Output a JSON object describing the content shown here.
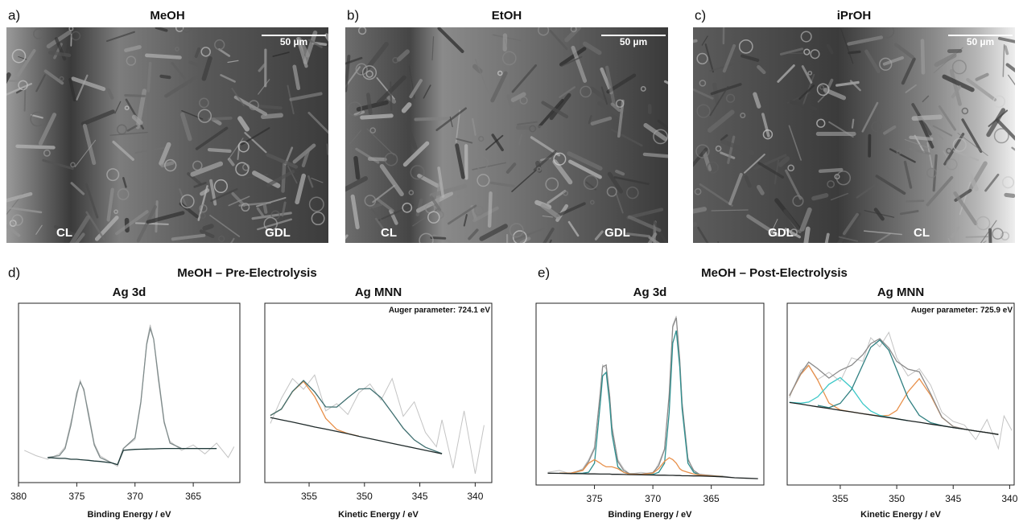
{
  "figure": {
    "panels": [
      {
        "label": "a)",
        "title": "MeOH",
        "scale_bar": "50 µm",
        "regions": [
          "CL",
          "GDL"
        ]
      },
      {
        "label": "b)",
        "title": "EtOH",
        "scale_bar": "50 µm",
        "regions": [
          "CL",
          "GDL"
        ]
      },
      {
        "label": "c)",
        "title": "iPrOH",
        "scale_bar": "50 µm",
        "regions": [
          "GDL",
          "CL"
        ]
      }
    ],
    "groups": [
      {
        "label": "d)",
        "title": "MeOH – Pre-Electrolysis"
      },
      {
        "label": "e)",
        "title": "MeOH – Post-Electrolysis"
      }
    ]
  },
  "chart_data": [
    {
      "type": "line",
      "title": "Ag 3d",
      "xlabel": "Binding Energy / eV",
      "xlim": [
        380,
        361
      ],
      "xticks": [
        380,
        375,
        370,
        365
      ],
      "ylim": [
        0,
        100
      ],
      "x": [
        379.5,
        378.5,
        377.5,
        376.5,
        376,
        375.5,
        375,
        374.7,
        374.4,
        374,
        373.5,
        373,
        372,
        371.5,
        371,
        370,
        369.5,
        369,
        368.7,
        368.4,
        368,
        367.5,
        367,
        366,
        365,
        364,
        363,
        362,
        361.5
      ],
      "series": [
        {
          "color": "#c4c4c4",
          "values": [
            18,
            15,
            13,
            16,
            20,
            34,
            48,
            57,
            51,
            40,
            22,
            15,
            11,
            9,
            19,
            24,
            44,
            78,
            88,
            80,
            57,
            33,
            23,
            18,
            21,
            16,
            22,
            14,
            20
          ]
        },
        {
          "color": "#7e8a8a",
          "values": [
            null,
            null,
            14,
            15,
            19,
            32,
            50,
            56,
            52,
            38,
            21,
            14,
            11,
            10,
            19,
            25,
            45,
            77,
            86,
            80,
            59,
            34,
            22,
            19,
            19,
            19,
            19,
            null,
            null
          ]
        },
        {
          "color": "#1f3a3a",
          "values": [
            null,
            null,
            14,
            13.5,
            13.5,
            13,
            13,
            12.8,
            12.6,
            12.4,
            12,
            11.8,
            11,
            10,
            18,
            18.5,
            18.6,
            18.7,
            18.8,
            18.8,
            18.9,
            19,
            19,
            19,
            19,
            19,
            19,
            null,
            null
          ]
        }
      ]
    },
    {
      "type": "line",
      "title": "Ag MNN",
      "xlabel": "Kinetic Energy / eV",
      "annotation": "Auger parameter: 724.1 eV",
      "xlim": [
        359,
        338.5
      ],
      "xticks": [
        355,
        350,
        345,
        340
      ],
      "ylim": [
        0,
        100
      ],
      "x": [
        358.5,
        357.5,
        356.5,
        355.5,
        354.5,
        353.5,
        352.5,
        351.5,
        350.5,
        349.5,
        348.5,
        347.5,
        346.5,
        345.5,
        344.5,
        343.5,
        343,
        342,
        341,
        340,
        339.2
      ],
      "series": [
        {
          "color": "#c4c4c4",
          "values": [
            33,
            47,
            58,
            52,
            60,
            40,
            44,
            38,
            50,
            55,
            46,
            58,
            37,
            45,
            28,
            20,
            35,
            8,
            40,
            5,
            32
          ]
        },
        {
          "color": "#e8904a",
          "values": [
            37.4,
            41,
            50.7,
            56.4,
            48,
            35.8,
            29.6,
            27.3,
            25.9,
            null,
            null,
            null,
            null,
            null,
            null,
            null,
            null,
            null,
            null,
            null,
            null
          ]
        },
        {
          "color": "#3f6f70",
          "values": [
            37.4,
            41,
            50.8,
            56.9,
            50.6,
            42.2,
            42.1,
            47.3,
            52.2,
            52.4,
            47.3,
            38.9,
            30.3,
            23.8,
            19.7,
            17.3,
            16.2,
            null,
            null,
            null,
            null
          ]
        },
        {
          "color": "#1f2a2a",
          "values": [
            36.3,
            35,
            33.7,
            32.4,
            31,
            29.8,
            28.5,
            27.2,
            25.8,
            24.5,
            23.2,
            21.9,
            20.6,
            19.3,
            18,
            16.7,
            16,
            null,
            null,
            null,
            null
          ]
        }
      ]
    },
    {
      "type": "line",
      "title": "Ag 3d",
      "xlabel": "Binding Energy / eV",
      "xlim": [
        380,
        360.5
      ],
      "xticks": [
        375,
        370,
        365
      ],
      "ylim": [
        0,
        100
      ],
      "x": [
        379,
        378,
        377,
        376,
        375.5,
        375,
        374.5,
        374.3,
        374,
        373.7,
        373.5,
        373,
        372.5,
        372,
        371,
        370,
        369.5,
        369,
        368.6,
        368.3,
        368,
        367.7,
        367.5,
        367,
        366.5,
        366,
        365,
        364,
        363,
        362,
        361
      ],
      "series": [
        {
          "color": "#c4c4c4",
          "values": [
            7,
            8,
            6,
            9,
            14,
            21,
            50,
            66,
            64,
            50,
            31,
            14,
            9,
            6,
            7,
            6,
            12,
            20,
            49,
            88,
            93,
            68,
            46,
            15,
            7,
            6,
            5,
            5,
            4,
            4,
            3.5
          ]
        },
        {
          "color": "#8a8a8a",
          "values": [
            null,
            6.6,
            6.6,
            8.3,
            12.9,
            20,
            51,
            65,
            66,
            49,
            32,
            13,
            8,
            6.3,
            6,
            6.8,
            10.6,
            19.6,
            50,
            87,
            92,
            69,
            45,
            14,
            8,
            5.8,
            5.2,
            4.7,
            null,
            null,
            null
          ]
        },
        {
          "color": "#2f8f8f",
          "values": [
            null,
            6.5,
            6.4,
            6.5,
            7,
            12,
            45,
            60,
            62,
            45,
            28,
            10,
            7,
            6,
            5.8,
            5.8,
            7,
            12,
            40,
            78,
            85,
            65,
            42,
            12,
            7,
            5.3,
            5,
            4.6,
            null,
            null,
            null
          ]
        },
        {
          "color": "#e8904a",
          "values": [
            null,
            6.5,
            6.5,
            8,
            12,
            14,
            12,
            11,
            10,
            10,
            10,
            9,
            7,
            6,
            5.8,
            6.5,
            9,
            13,
            15,
            14,
            12,
            9,
            8,
            7,
            6,
            5.5,
            5,
            4.6,
            null,
            null,
            null
          ]
        },
        {
          "color": "#1c2222",
          "values": [
            6.5,
            6.4,
            6.3,
            6.2,
            6.1,
            6.1,
            6,
            6,
            6,
            6,
            5.9,
            5.9,
            5.8,
            5.7,
            5.6,
            5.5,
            5.4,
            5.4,
            5.3,
            5.3,
            5.2,
            5.2,
            5.1,
            5.1,
            5,
            5,
            4.8,
            4.5,
            4,
            3.7,
            3.5
          ]
        }
      ]
    },
    {
      "type": "line",
      "title": "Ag MNN",
      "xlabel": "Kinetic Energy / eV",
      "annotation": "Auger parameter: 725.9 eV",
      "xlim": [
        359.7,
        339.6
      ],
      "xticks": [
        355,
        350,
        345,
        340
      ],
      "ylim": [
        0,
        100
      ],
      "x": [
        359.5,
        358.5,
        357.8,
        357,
        356,
        355,
        354,
        353,
        352.3,
        351.5,
        350.7,
        350,
        349,
        348,
        347,
        346,
        345,
        344,
        343,
        342,
        341,
        340.5,
        339.8
      ],
      "series": [
        {
          "color": "#c4c4c4",
          "values": [
            48,
            63,
            66,
            58,
            62,
            57,
            70,
            68,
            81,
            76,
            84,
            70,
            60,
            64,
            55,
            40,
            35,
            33,
            25,
            36,
            20,
            38,
            30
          ]
        },
        {
          "color": "#e8904a",
          "values": [
            49.1,
            60.8,
            65.8,
            57.7,
            45.1,
            41.3,
            40.2,
            39.2,
            38.6,
            38,
            38.3,
            41,
            51.3,
            58.5,
            49.4,
            37.2,
            32.2,
            30.7,
            29.7,
            28.8,
            27.8,
            null,
            null
          ]
        },
        {
          "color": "#3cc8c8",
          "values": [
            45.5,
            45,
            45.6,
            48.5,
            55.4,
            59.1,
            53.5,
            44.7,
            40.7,
            38.3,
            37.2,
            36.4,
            35.4,
            null,
            null,
            null,
            null,
            null,
            null,
            null,
            null,
            null,
            null
          ]
        },
        {
          "color": "#2f7f80",
          "values": [
            null,
            null,
            null,
            43.8,
            42.5,
            44.9,
            52.6,
            66.2,
            75.7,
            79.8,
            74.1,
            63.4,
            47.8,
            38.3,
            34.3,
            32.7,
            31.6,
            30.7,
            29.7,
            28.8,
            27.8,
            null,
            null
          ]
        },
        {
          "color": "#8a8a8a",
          "values": [
            49.2,
            61.3,
            67.6,
            64,
            58.8,
            63.1,
            65.9,
            71.7,
            77.8,
            80.5,
            75.4,
            68,
            63.7,
            62.3,
            50.2,
            37.3,
            32.2,
            30.7,
            29.7,
            28.8,
            27.8,
            null,
            null
          ]
        },
        {
          "color": "#1c2222",
          "values": [
            45.4,
            44.5,
            43.8,
            43,
            42.1,
            41.1,
            40.2,
            39.2,
            38.6,
            37.8,
            37.1,
            36.4,
            35.4,
            34.5,
            33.5,
            32.6,
            31.6,
            30.7,
            29.7,
            28.8,
            27.8,
            null,
            null
          ]
        }
      ]
    }
  ]
}
